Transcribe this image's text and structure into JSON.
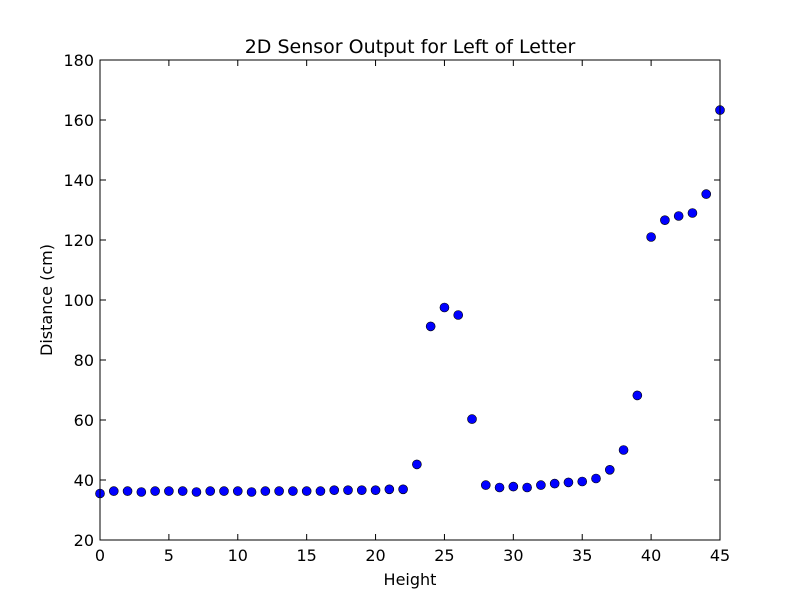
{
  "chart_data": {
    "type": "scatter",
    "title": "2D Sensor Output for Left of Letter",
    "xlabel": "Height",
    "ylabel": "Distance (cm)",
    "xlim": [
      0,
      45
    ],
    "ylim": [
      20,
      180
    ],
    "xticks": [
      0,
      5,
      10,
      15,
      20,
      25,
      30,
      35,
      40,
      45
    ],
    "yticks": [
      20,
      40,
      60,
      80,
      100,
      120,
      140,
      160,
      180
    ],
    "grid": false,
    "marker_color": "#0000ff",
    "marker_edge": "#000000",
    "series": [
      {
        "x": [
          0,
          1,
          2,
          3,
          4,
          5,
          6,
          7,
          8,
          9,
          10,
          11,
          12,
          13,
          14,
          15,
          16,
          17,
          18,
          19,
          20,
          21,
          22,
          23,
          24,
          25,
          26,
          27,
          28,
          29,
          30,
          31,
          32,
          33,
          34,
          35,
          36,
          37,
          38,
          39,
          40,
          41,
          42,
          43,
          44,
          45
        ],
        "y": [
          35.5,
          36.3,
          36.3,
          36.0,
          36.3,
          36.3,
          36.3,
          36.0,
          36.3,
          36.3,
          36.3,
          36.0,
          36.3,
          36.3,
          36.3,
          36.3,
          36.3,
          36.6,
          36.6,
          36.6,
          36.6,
          36.9,
          36.9,
          45.2,
          91.2,
          97.5,
          95.0,
          60.3,
          38.3,
          37.5,
          37.8,
          37.5,
          38.3,
          38.8,
          39.2,
          39.5,
          40.5,
          43.4,
          50.0,
          68.2,
          121.0,
          126.6,
          128.0,
          129.0,
          135.3,
          163.3
        ]
      }
    ]
  }
}
